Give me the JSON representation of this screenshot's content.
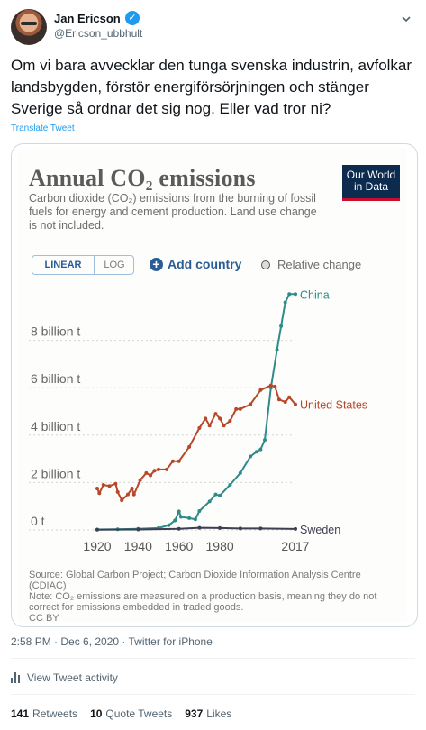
{
  "tweet": {
    "author_name": "Jan Ericson",
    "verified_glyph": "✓",
    "handle": "@Ericson_ubbhult",
    "text": "Om vi bara avvecklar den tunga  svenska industrin, avfolkar landsbygden, förstör energiförsörjningen och stänger Sverige så ordnar det sig nog. Eller vad tror ni?",
    "translate_label": "Translate Tweet",
    "timestamp": "2:58 PM · Dec 6, 2020 · Twitter for iPhone",
    "activity_label": "View Tweet activity",
    "stats": {
      "retweets_count": "141",
      "retweets_label": "Retweets",
      "quotes_count": "10",
      "quotes_label": "Quote Tweets",
      "likes_count": "937",
      "likes_label": "Likes"
    },
    "accent_color": "#1d9bf0"
  },
  "chart_card": {
    "title": "Annual CO₂ emissions",
    "subtitle": "Carbon dioxide (CO₂) emissions from the burning of fossil fuels for energy and cement production. Land use change is not included.",
    "logo_line1": "Our World",
    "logo_line2": "in Data",
    "toggle_linear": "LINEAR",
    "toggle_log": "LOG",
    "add_country": "Add country",
    "relative_change": "Relative change",
    "source_line1": "Source: Global Carbon Project; Carbon Dioxide Information Analysis Centre (CDIAC)",
    "source_line2": "Note: CO₂ emissions are measured on a production basis, meaning they do not correct for emissions embedded in traded goods.",
    "license": "CC BY"
  },
  "chart_data": {
    "type": "line",
    "title": "Annual CO₂ emissions",
    "xlabel": "",
    "ylabel": "",
    "xlim": [
      1920,
      2017
    ],
    "ylim": [
      0,
      10
    ],
    "x_ticks": [
      "1920",
      "1940",
      "1960",
      "1980",
      "2017"
    ],
    "y_ticks": [
      {
        "value": 0,
        "label": "0 t"
      },
      {
        "value": 2,
        "label": "2 billion t"
      },
      {
        "value": 4,
        "label": "4 billion t"
      },
      {
        "value": 6,
        "label": "6 billion t"
      },
      {
        "value": 8,
        "label": "8 billion t"
      }
    ],
    "grid": "horizontal-dotted",
    "legend": "inline-end-labels",
    "series": [
      {
        "name": "China",
        "color": "#2e8b88",
        "points": [
          [
            1920,
            0.02
          ],
          [
            1930,
            0.03
          ],
          [
            1940,
            0.05
          ],
          [
            1950,
            0.08
          ],
          [
            1955,
            0.2
          ],
          [
            1958,
            0.4
          ],
          [
            1960,
            0.78
          ],
          [
            1961,
            0.55
          ],
          [
            1965,
            0.5
          ],
          [
            1968,
            0.45
          ],
          [
            1970,
            0.8
          ],
          [
            1975,
            1.2
          ],
          [
            1978,
            1.5
          ],
          [
            1980,
            1.45
          ],
          [
            1985,
            1.9
          ],
          [
            1990,
            2.4
          ],
          [
            1995,
            3.1
          ],
          [
            1998,
            3.3
          ],
          [
            2000,
            3.4
          ],
          [
            2002,
            3.8
          ],
          [
            2005,
            6.0
          ],
          [
            2008,
            7.6
          ],
          [
            2010,
            8.6
          ],
          [
            2012,
            9.6
          ],
          [
            2014,
            9.95
          ],
          [
            2017,
            9.95
          ]
        ]
      },
      {
        "name": "United States",
        "color": "#b7472a",
        "points": [
          [
            1920,
            1.75
          ],
          [
            1921,
            1.55
          ],
          [
            1923,
            1.9
          ],
          [
            1926,
            1.85
          ],
          [
            1929,
            1.95
          ],
          [
            1930,
            1.6
          ],
          [
            1932,
            1.25
          ],
          [
            1935,
            1.5
          ],
          [
            1937,
            1.75
          ],
          [
            1938,
            1.5
          ],
          [
            1941,
            2.1
          ],
          [
            1944,
            2.4
          ],
          [
            1946,
            2.3
          ],
          [
            1948,
            2.5
          ],
          [
            1950,
            2.55
          ],
          [
            1954,
            2.55
          ],
          [
            1957,
            2.9
          ],
          [
            1960,
            2.9
          ],
          [
            1965,
            3.5
          ],
          [
            1970,
            4.3
          ],
          [
            1973,
            4.7
          ],
          [
            1975,
            4.4
          ],
          [
            1978,
            4.9
          ],
          [
            1980,
            4.7
          ],
          [
            1982,
            4.4
          ],
          [
            1985,
            4.6
          ],
          [
            1988,
            5.1
          ],
          [
            1990,
            5.1
          ],
          [
            1995,
            5.3
          ],
          [
            2000,
            5.9
          ],
          [
            2005,
            6.1
          ],
          [
            2007,
            6.05
          ],
          [
            2009,
            5.5
          ],
          [
            2012,
            5.4
          ],
          [
            2014,
            5.6
          ],
          [
            2017,
            5.3
          ]
        ]
      },
      {
        "name": "Sweden",
        "color": "#3d3f52",
        "points": [
          [
            1920,
            0.01
          ],
          [
            1940,
            0.02
          ],
          [
            1960,
            0.05
          ],
          [
            1970,
            0.09
          ],
          [
            1980,
            0.08
          ],
          [
            1990,
            0.06
          ],
          [
            2000,
            0.06
          ],
          [
            2017,
            0.04
          ]
        ]
      }
    ]
  }
}
